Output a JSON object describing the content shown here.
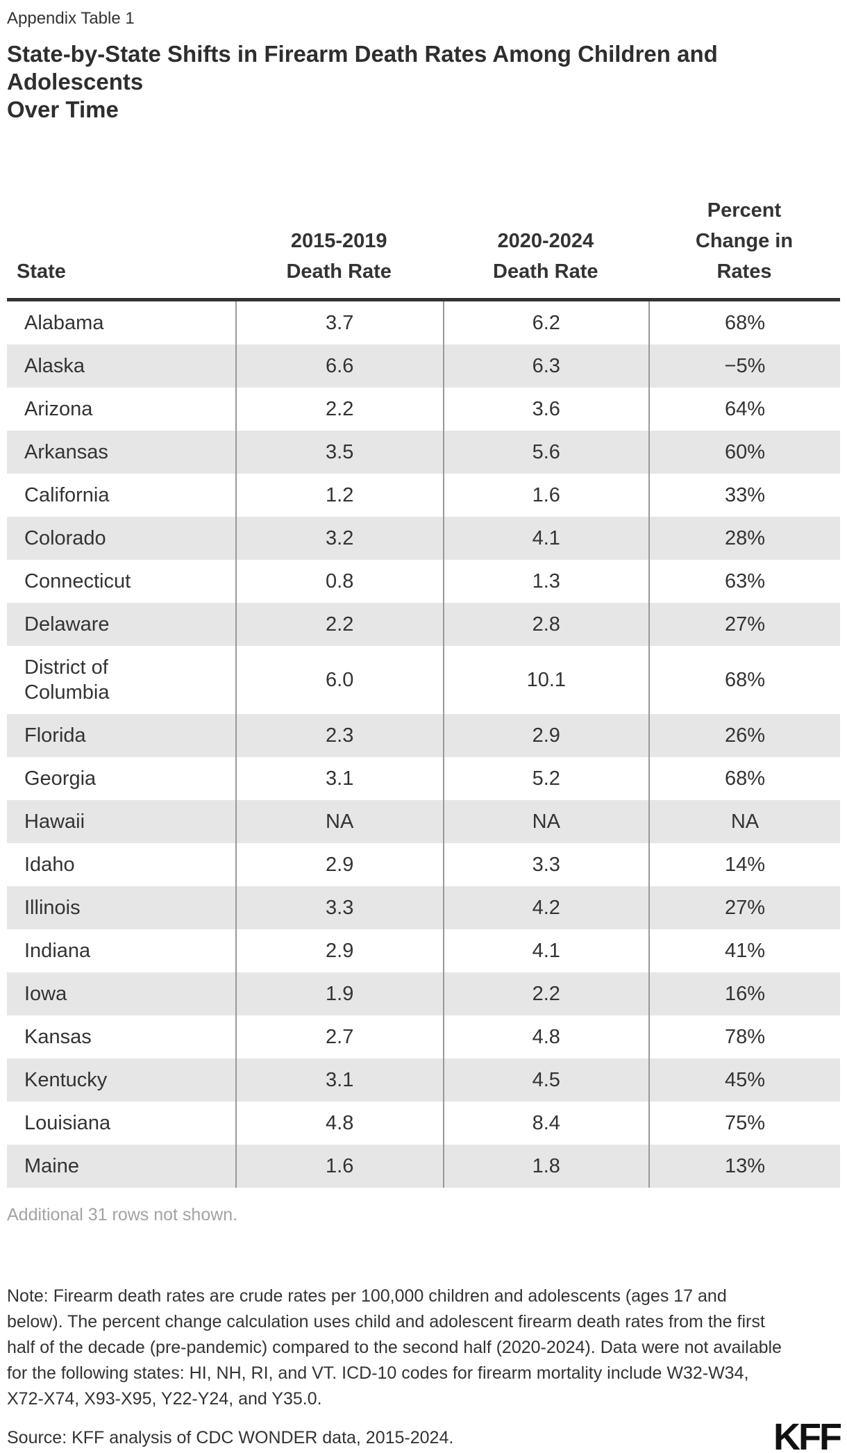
{
  "header": {
    "kicker": "Appendix Table 1",
    "title": "State-by-State Shifts in Firearm Death Rates Among Children and Adolescents",
    "title_line2": "Over Time"
  },
  "chart_data": {
    "type": "table",
    "title": "State-by-State Shifts in Firearm Death Rates Among Children and Adolescents Over Time",
    "columns": [
      "State",
      "2015-2019\nDeath Rate",
      "2020-2024\nDeath Rate",
      "Percent\nChange in\nRates"
    ],
    "rows": [
      [
        "Alabama",
        "3.7",
        "6.2",
        "68%"
      ],
      [
        "Alaska",
        "6.6",
        "6.3",
        "−5%"
      ],
      [
        "Arizona",
        "2.2",
        "3.6",
        "64%"
      ],
      [
        "Arkansas",
        "3.5",
        "5.6",
        "60%"
      ],
      [
        "California",
        "1.2",
        "1.6",
        "33%"
      ],
      [
        "Colorado",
        "3.2",
        "4.1",
        "28%"
      ],
      [
        "Connecticut",
        "0.8",
        "1.3",
        "63%"
      ],
      [
        "Delaware",
        "2.2",
        "2.8",
        "27%"
      ],
      [
        "District of Columbia",
        "6.0",
        "10.1",
        "68%"
      ],
      [
        "Florida",
        "2.3",
        "2.9",
        "26%"
      ],
      [
        "Georgia",
        "3.1",
        "5.2",
        "68%"
      ],
      [
        "Hawaii",
        "NA",
        "NA",
        "NA"
      ],
      [
        "Idaho",
        "2.9",
        "3.3",
        "14%"
      ],
      [
        "Illinois",
        "3.3",
        "4.2",
        "27%"
      ],
      [
        "Indiana",
        "2.9",
        "4.1",
        "41%"
      ],
      [
        "Iowa",
        "1.9",
        "2.2",
        "16%"
      ],
      [
        "Kansas",
        "2.7",
        "4.8",
        "78%"
      ],
      [
        "Kentucky",
        "3.1",
        "4.5",
        "45%"
      ],
      [
        "Louisiana",
        "4.8",
        "8.4",
        "75%"
      ],
      [
        "Maine",
        "1.6",
        "1.8",
        "13%"
      ]
    ]
  },
  "footer": {
    "truncation_note": "Additional 31 rows not shown.",
    "note": "Note: Firearm death rates are crude rates per 100,000 children and adolescents (ages 17 and below). The percent change calculation uses child and adolescent firearm death rates from the first half of the decade (pre-pandemic) compared to the second half (2020-2024). Data were not available for the following states: HI, NH, RI, and VT. ICD-10 codes for firearm mortality include W32-W34, X72-X74, X93-X95, Y22-Y24, and Y35.0.",
    "source": "Source: KFF analysis of CDC WONDER data, 2015-2024.",
    "logo_text": "KFF"
  },
  "colors": {
    "row_stripe": "#e6e6e6",
    "column_divider": "#999999",
    "header_border": "#333333",
    "text": "#333333",
    "muted_text": "#a3a3a3",
    "logo": "#111111"
  }
}
